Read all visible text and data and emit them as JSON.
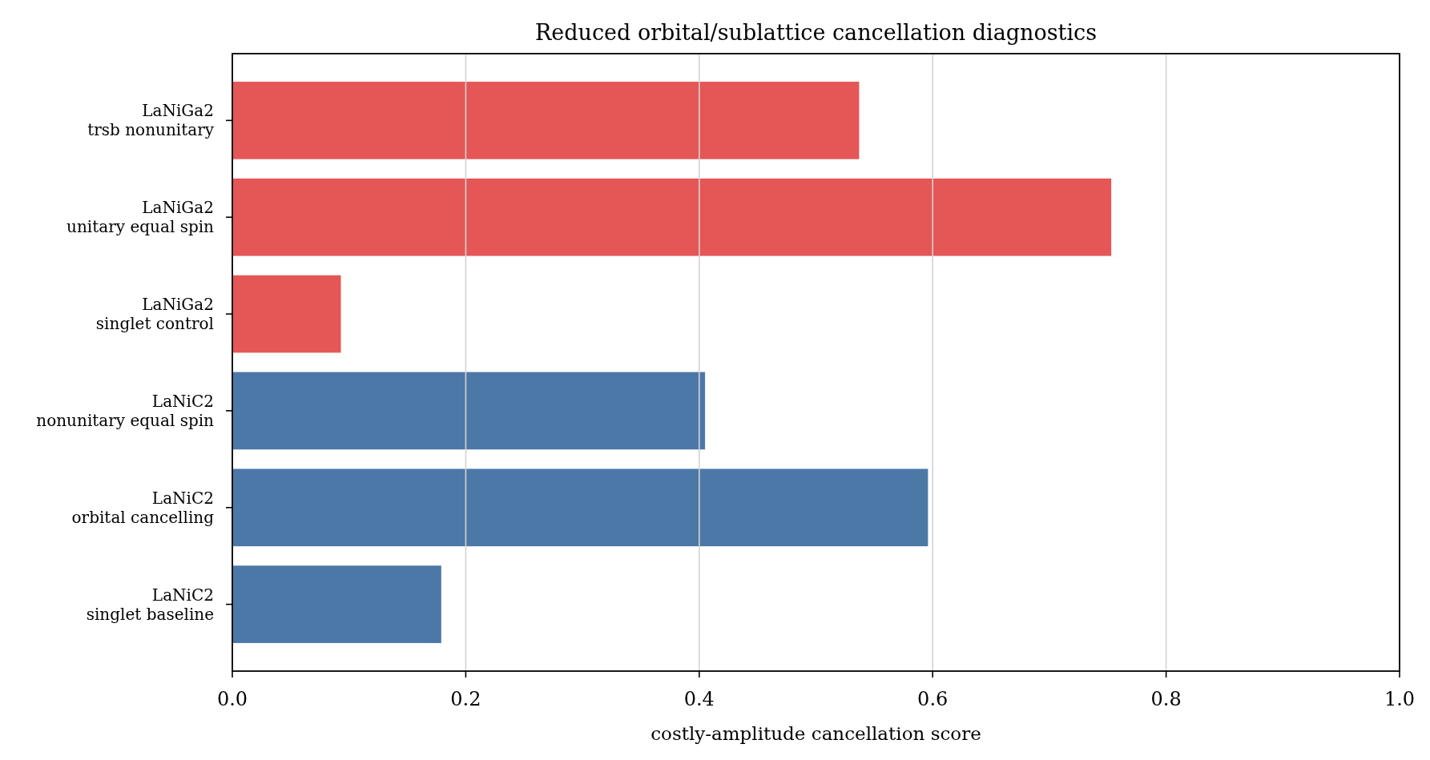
{
  "chart_data": {
    "type": "bar",
    "orientation": "horizontal",
    "title": "Reduced orbital/sublattice cancellation diagnostics",
    "xlabel": "costly-amplitude cancellation score",
    "categories": [
      "LaNiGa2\ntrsb nonunitary",
      "LaNiGa2\nunitary equal spin",
      "LaNiGa2\nsinglet control",
      "LaNiC2\nnonunitary equal spin",
      "LaNiC2\norbital cancelling",
      "LaNiC2\nsinglet baseline"
    ],
    "values": [
      0.537,
      0.753,
      0.093,
      0.405,
      0.596,
      0.179
    ],
    "colors": [
      "#e45756",
      "#e45756",
      "#e45756",
      "#4c78a8",
      "#4c78a8",
      "#4c78a8"
    ],
    "xlim": [
      0,
      1
    ],
    "xticks": [
      {
        "value": 0,
        "label": "0.0"
      },
      0.2,
      0.4,
      0.6,
      0.8,
      {
        "value": 1,
        "label": "1.0"
      }
    ],
    "grid": "x"
  }
}
